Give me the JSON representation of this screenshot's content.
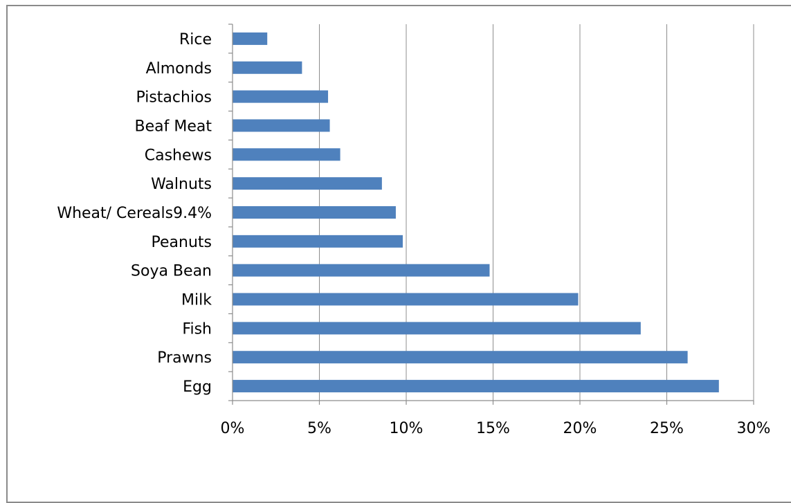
{
  "chart_data": {
    "type": "bar",
    "orientation": "horizontal",
    "categories": [
      "Egg",
      "Prawns",
      "Fish",
      "Milk",
      "Soya Bean",
      "Peanuts",
      "Wheat/ Cereals9.4%",
      "Walnuts",
      "Cashews",
      "Beaf Meat",
      "Pistachios",
      "Almonds",
      "Rice"
    ],
    "values": [
      28.0,
      26.2,
      23.5,
      19.9,
      14.8,
      9.8,
      9.4,
      8.6,
      6.2,
      5.6,
      5.5,
      4.0,
      2.0
    ],
    "xlim": [
      0,
      30
    ],
    "xticks": [
      0,
      5,
      10,
      15,
      20,
      25,
      30
    ],
    "xtick_labels": [
      "0%",
      "5%",
      "10%",
      "15%",
      "20%",
      "25%",
      "30%"
    ],
    "bar_color": "#4f81bd",
    "grid": "vertical"
  }
}
